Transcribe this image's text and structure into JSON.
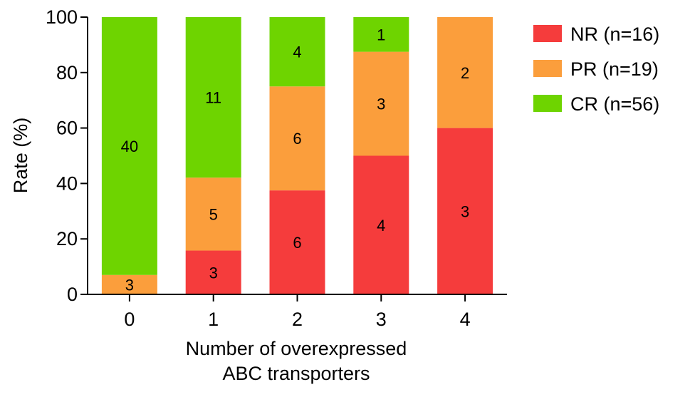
{
  "chart_data": {
    "type": "bar",
    "stacked": true,
    "percent_stacked": true,
    "categories": [
      "0",
      "1",
      "2",
      "3",
      "4"
    ],
    "series": [
      {
        "name": "NR (n=16)",
        "color": "#f53c3c",
        "values": [
          0,
          3,
          6,
          4,
          3
        ],
        "percent": [
          0,
          15.8,
          37.5,
          50.0,
          60.0
        ]
      },
      {
        "name": "PR (n=19)",
        "color": "#fb9e3c",
        "values": [
          3,
          5,
          6,
          3,
          2
        ],
        "percent": [
          7.0,
          26.3,
          37.5,
          37.5,
          40.0
        ]
      },
      {
        "name": "CR (n=56)",
        "color": "#6ed400",
        "values": [
          40,
          11,
          4,
          1,
          0
        ],
        "percent": [
          93.0,
          57.9,
          25.0,
          12.5,
          0
        ]
      }
    ],
    "xlabel": [
      "Number of overexpressed",
      "ABC transporters"
    ],
    "ylabel": "Rate (%)",
    "ylim": [
      0,
      100
    ],
    "yticks": [
      "0",
      "20",
      "40",
      "60",
      "80",
      "100"
    ],
    "grid": false,
    "legend_position": "right"
  }
}
